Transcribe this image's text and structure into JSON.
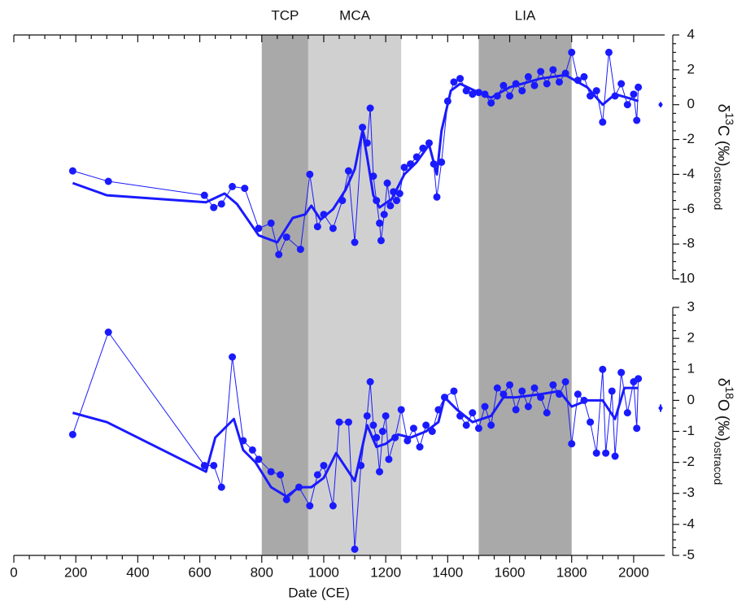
{
  "chart_data": [
    {
      "type": "line",
      "ylabel": {
        "symbol": "δ",
        "superscript": "13",
        "main": "C (‰)",
        "subscript": "ostracod"
      },
      "xlim": [
        0,
        2100
      ],
      "xticks": [
        0,
        200,
        400,
        600,
        800,
        1000,
        1200,
        1400,
        1600,
        1800,
        2000
      ],
      "ylim": [
        -10,
        4
      ],
      "yticks": [
        4,
        2,
        0,
        -2,
        -4,
        -6,
        -8,
        -10
      ],
      "periods": [
        {
          "label": "TCP",
          "start": 800,
          "end": 950,
          "color": "#a9a9a9"
        },
        {
          "label": "MCA",
          "start": 950,
          "end": 1250,
          "color": "#d0d0d0"
        },
        {
          "label": "LIA",
          "start": 1500,
          "end": 1800,
          "color": "#a9a9a9"
        }
      ],
      "error_bar": {
        "value": 0,
        "error": 0.15
      },
      "series": [
        {
          "color": "#1a1aff",
          "marker": true,
          "line_width": 1,
          "x": [
            190,
            305,
            615,
            645,
            670,
            705,
            745,
            790,
            830,
            855,
            880,
            925,
            955,
            980,
            1000,
            1030,
            1060,
            1080,
            1100,
            1125,
            1140,
            1150,
            1160,
            1170,
            1180,
            1185,
            1195,
            1205,
            1215,
            1225,
            1235,
            1245,
            1260,
            1280,
            1300,
            1320,
            1340,
            1355,
            1365,
            1380,
            1400,
            1420,
            1440,
            1460,
            1480,
            1500,
            1520,
            1540,
            1560,
            1580,
            1600,
            1620,
            1640,
            1660,
            1680,
            1700,
            1720,
            1740,
            1760,
            1780,
            1800,
            1820,
            1840,
            1860,
            1880,
            1900,
            1920,
            1940,
            1960,
            1980,
            2000,
            2010,
            2015
          ],
          "values": [
            -3.8,
            -4.4,
            -5.2,
            -5.9,
            -5.7,
            -4.7,
            -4.8,
            -7.1,
            -6.8,
            -8.6,
            -7.6,
            -8.3,
            -4.0,
            -7.0,
            -6.3,
            -7.1,
            -5.5,
            -3.8,
            -7.9,
            -1.3,
            -2.2,
            -0.2,
            -4.1,
            -5.5,
            -6.8,
            -7.8,
            -6.3,
            -4.5,
            -5.8,
            -5.0,
            -5.5,
            -5.1,
            -3.6,
            -3.4,
            -3.0,
            -2.5,
            -2.2,
            -3.4,
            -5.3,
            -3.3,
            0.2,
            1.3,
            1.5,
            0.8,
            0.6,
            0.7,
            0.6,
            0.1,
            0.5,
            1.1,
            0.5,
            1.2,
            0.8,
            1.6,
            1.1,
            1.9,
            1.2,
            2.0,
            1.3,
            1.8,
            3.0,
            1.4,
            1.6,
            0.5,
            0.8,
            -1.0,
            3.0,
            0.5,
            1.2,
            0.0,
            0.6,
            -0.9,
            1.0
          ]
        },
        {
          "color": "#1a1aff",
          "marker": false,
          "line_width": 3,
          "x": [
            190,
            300,
            620,
            680,
            720,
            790,
            850,
            900,
            940,
            960,
            990,
            1030,
            1070,
            1100,
            1125,
            1140,
            1160,
            1180,
            1220,
            1260,
            1300,
            1340,
            1365,
            1380,
            1410,
            1440,
            1500,
            1540,
            1600,
            1700,
            1780,
            1850,
            1900,
            1940,
            2000,
            2015
          ],
          "values": [
            -4.5,
            -5.2,
            -5.6,
            -5.1,
            -5.7,
            -7.5,
            -7.9,
            -6.5,
            -6.3,
            -5.8,
            -6.6,
            -6.0,
            -4.9,
            -3.7,
            -1.5,
            -3.0,
            -5.2,
            -5.9,
            -5.4,
            -4.0,
            -3.3,
            -2.3,
            -4.0,
            -1.5,
            0.8,
            1.2,
            0.7,
            0.4,
            1.0,
            1.5,
            1.7,
            1.0,
            0.0,
            0.6,
            0.3,
            0.2
          ]
        }
      ]
    },
    {
      "type": "line",
      "ylabel": {
        "symbol": "δ",
        "superscript": "18",
        "main": "O (‰)",
        "subscript": "ostracod"
      },
      "xlabel": "Date (CE)",
      "xlim": [
        0,
        2100
      ],
      "xticks": [
        0,
        200,
        400,
        600,
        800,
        1000,
        1200,
        1400,
        1600,
        1800,
        2000
      ],
      "ylim": [
        -5,
        3
      ],
      "yticks": [
        3,
        2,
        1,
        0,
        -1,
        -2,
        -3,
        -4,
        -5
      ],
      "error_bar": {
        "value": -0.25,
        "error": 0.12
      },
      "series": [
        {
          "color": "#1a1aff",
          "marker": true,
          "line_width": 1,
          "x": [
            190,
            305,
            615,
            645,
            670,
            705,
            740,
            770,
            790,
            830,
            860,
            880,
            920,
            955,
            980,
            1000,
            1030,
            1050,
            1080,
            1100,
            1120,
            1140,
            1150,
            1160,
            1170,
            1180,
            1190,
            1200,
            1210,
            1230,
            1250,
            1270,
            1290,
            1310,
            1330,
            1350,
            1370,
            1390,
            1420,
            1440,
            1460,
            1480,
            1500,
            1520,
            1540,
            1560,
            1580,
            1600,
            1620,
            1640,
            1660,
            1680,
            1700,
            1720,
            1740,
            1760,
            1780,
            1800,
            1820,
            1840,
            1860,
            1880,
            1900,
            1910,
            1930,
            1940,
            1960,
            1980,
            2000,
            2010,
            2015
          ],
          "values": [
            -1.1,
            2.2,
            -2.1,
            -2.1,
            -2.8,
            1.4,
            -1.3,
            -1.6,
            -1.9,
            -2.3,
            -2.4,
            -3.2,
            -2.8,
            -3.4,
            -2.4,
            -2.1,
            -3.4,
            -0.7,
            -0.7,
            -4.8,
            -2.1,
            -0.5,
            0.6,
            -0.8,
            -1.2,
            -2.3,
            -1.0,
            -0.5,
            -1.9,
            -1.2,
            -0.3,
            -1.3,
            -0.9,
            -1.5,
            -0.8,
            -1.0,
            -0.3,
            0.1,
            0.3,
            -0.5,
            -0.8,
            -0.4,
            -0.9,
            -0.2,
            -0.8,
            0.4,
            0.2,
            0.5,
            -0.3,
            0.3,
            -0.2,
            0.4,
            0.1,
            -0.4,
            0.5,
            0.2,
            0.6,
            -1.4,
            0.2,
            0.0,
            -0.7,
            -1.7,
            1.0,
            -1.7,
            0.3,
            -1.8,
            0.9,
            -0.4,
            0.6,
            -0.9,
            0.7
          ]
        },
        {
          "color": "#1a1aff",
          "marker": false,
          "line_width": 3,
          "x": [
            190,
            300,
            620,
            650,
            710,
            740,
            780,
            830,
            880,
            920,
            960,
            1000,
            1040,
            1100,
            1140,
            1170,
            1200,
            1240,
            1280,
            1330,
            1370,
            1390,
            1430,
            1480,
            1540,
            1580,
            1620,
            1700,
            1760,
            1800,
            1850,
            1900,
            1940,
            1970,
            2015
          ],
          "values": [
            -0.4,
            -0.7,
            -2.3,
            -1.2,
            -0.6,
            -1.6,
            -2.0,
            -2.8,
            -3.1,
            -2.8,
            -2.8,
            -2.5,
            -1.7,
            -2.6,
            -0.8,
            -1.5,
            -1.4,
            -1.1,
            -1.2,
            -1.0,
            -0.7,
            0.1,
            -0.3,
            -0.7,
            -0.5,
            0.1,
            0.1,
            0.2,
            0.3,
            -0.2,
            0.0,
            0.0,
            -0.6,
            0.4,
            0.4
          ]
        }
      ]
    }
  ]
}
